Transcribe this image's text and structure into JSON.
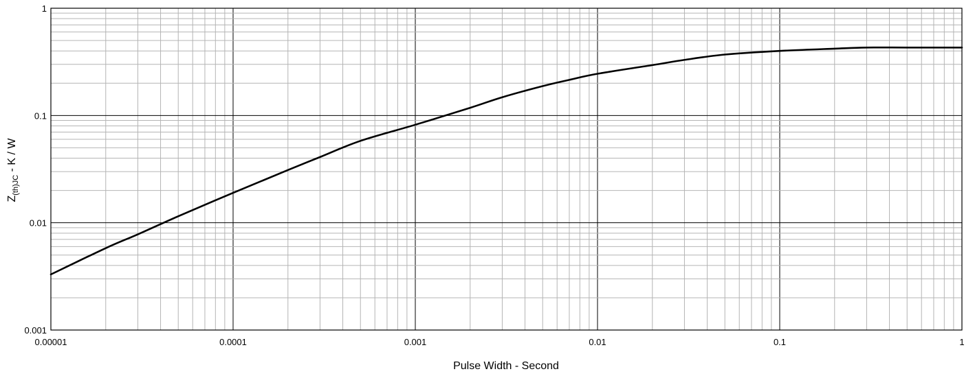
{
  "chart_data": {
    "type": "line",
    "xscale": "log",
    "yscale": "log",
    "xlim": [
      1e-05,
      1
    ],
    "ylim": [
      0.001,
      1
    ],
    "xlabel": "Pulse Width - Second",
    "ylabel_main": "Z",
    "ylabel_sub": "(th)JC",
    "ylabel_tail": " - K / W",
    "x_tick_labels": [
      "0.00001",
      "0.0001",
      "0.001",
      "0.01",
      "0.1",
      "1"
    ],
    "y_tick_labels": [
      "0.001",
      "0.01",
      "0.1",
      "1"
    ],
    "grid": true,
    "series": [
      {
        "x": [
          1e-05,
          2e-05,
          3e-05,
          5e-05,
          0.0001,
          0.0002,
          0.0003,
          0.0005,
          0.001,
          0.002,
          0.003,
          0.005,
          0.007,
          0.01,
          0.02,
          0.03,
          0.05,
          0.1,
          0.2,
          0.3,
          0.5,
          1
        ],
        "y": [
          0.0033,
          0.0058,
          0.0078,
          0.0115,
          0.019,
          0.031,
          0.041,
          0.058,
          0.082,
          0.118,
          0.148,
          0.188,
          0.215,
          0.245,
          0.295,
          0.33,
          0.37,
          0.4,
          0.42,
          0.43,
          0.43,
          0.43
        ]
      }
    ]
  }
}
